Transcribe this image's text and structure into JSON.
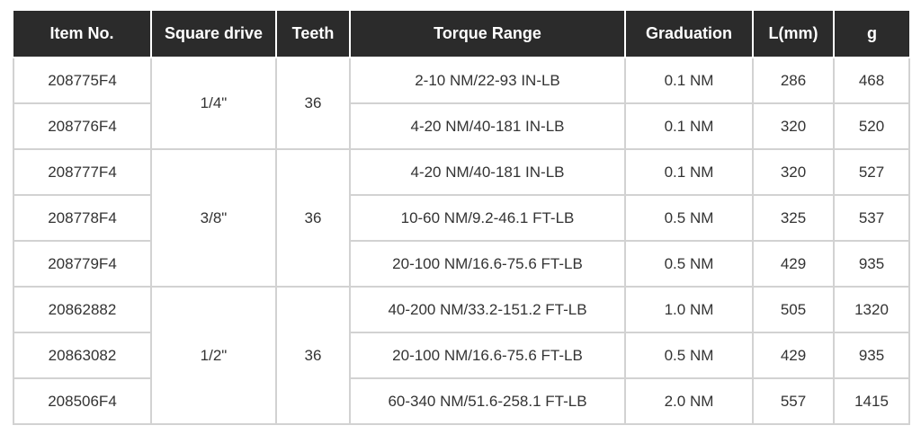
{
  "table": {
    "header": [
      "Item No.",
      "Square drive",
      "Teeth",
      "Torque Range",
      "Graduation",
      "L(mm)",
      "g"
    ],
    "groups": [
      {
        "square_drive": "1/4\"",
        "teeth": "36",
        "rows": [
          [
            "208775F4",
            "2-10 NM/22-93 IN-LB",
            "0.1 NM",
            "286",
            "468"
          ],
          [
            "208776F4",
            "4-20 NM/40-181 IN-LB",
            "0.1 NM",
            "320",
            "520"
          ]
        ]
      },
      {
        "square_drive": "3/8\"",
        "teeth": "36",
        "rows": [
          [
            "208777F4",
            "4-20 NM/40-181 IN-LB",
            "0.1 NM",
            "320",
            "527"
          ],
          [
            "208778F4",
            "10-60 NM/9.2-46.1 FT-LB",
            "0.5 NM",
            "325",
            "537"
          ],
          [
            "208779F4",
            "20-100 NM/16.6-75.6 FT-LB",
            "0.5 NM",
            "429",
            "935"
          ]
        ]
      },
      {
        "square_drive": "1/2\"",
        "teeth": "36",
        "rows": [
          [
            "20862882",
            "40-200 NM/33.2-151.2 FT-LB",
            "1.0 NM",
            "505",
            "1320"
          ],
          [
            "20863082",
            "20-100 NM/16.6-75.6 FT-LB",
            "0.5 NM",
            "429",
            "935"
          ],
          [
            "208506F4",
            "60-340 NM/51.6-258.1 FT-LB",
            "2.0 NM",
            "557",
            "1415"
          ]
        ]
      }
    ]
  }
}
